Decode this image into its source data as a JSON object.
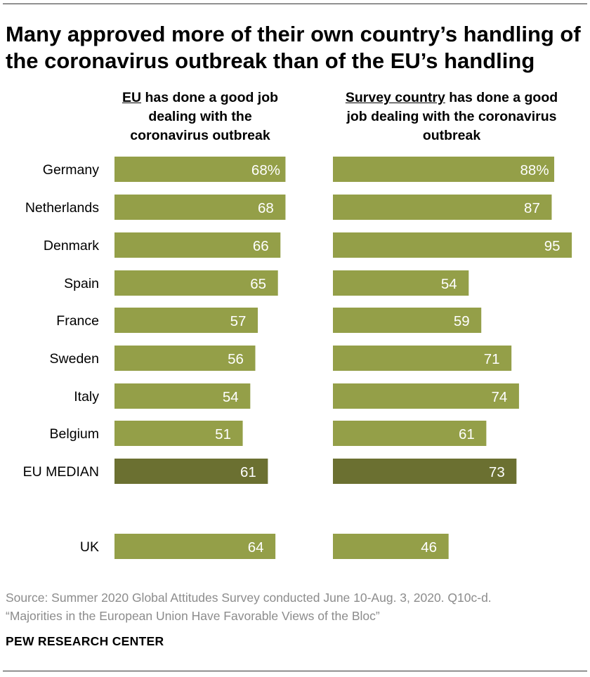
{
  "title": "Many approved more of their own country’s handling of the coronavirus outbreak than of the EU’s handling",
  "headers": {
    "eu": {
      "underlined": "EU",
      "rest_line1": " has done a good job",
      "line2": "dealing with the",
      "line3": "coronavirus outbreak"
    },
    "country": {
      "underlined": "Survey country",
      "rest_line1": " has done a good",
      "line2": "job dealing with the coronavirus",
      "line3": "outbreak"
    }
  },
  "colors": {
    "bar": "#949f48",
    "median_bar": "#6b7031",
    "label_text": "#ffffff"
  },
  "chart_data": {
    "type": "bar",
    "orientation": "horizontal",
    "value_format": "percent shown on first row only",
    "categories": [
      "Germany",
      "Netherlands",
      "Denmark",
      "Spain",
      "France",
      "Sweden",
      "Italy",
      "Belgium",
      "EU MEDIAN",
      "UK"
    ],
    "highlight_category": "EU MEDIAN",
    "series": [
      {
        "name": "EU has done a good job dealing with the coronavirus outbreak",
        "values": [
          68,
          68,
          66,
          65,
          57,
          56,
          54,
          51,
          61,
          64
        ],
        "labels": [
          "68%",
          "68",
          "66",
          "65",
          "57",
          "56",
          "54",
          "51",
          "61",
          "64"
        ]
      },
      {
        "name": "Survey country has done a good job dealing with the coronavirus outbreak",
        "values": [
          88,
          87,
          95,
          54,
          59,
          71,
          74,
          61,
          73,
          46
        ],
        "labels": [
          "88%",
          "87",
          "95",
          "54",
          "59",
          "71",
          "74",
          "61",
          "73",
          "46"
        ]
      }
    ],
    "xlim": [
      0,
      100
    ]
  },
  "source": {
    "line1": "Source: Summer 2020 Global Attitudes Survey conducted June 10-Aug. 3, 2020. Q10c-d.",
    "line2": "“Majorities in the European Union Have Favorable Views of the Bloc”"
  },
  "brand": "PEW RESEARCH CENTER"
}
